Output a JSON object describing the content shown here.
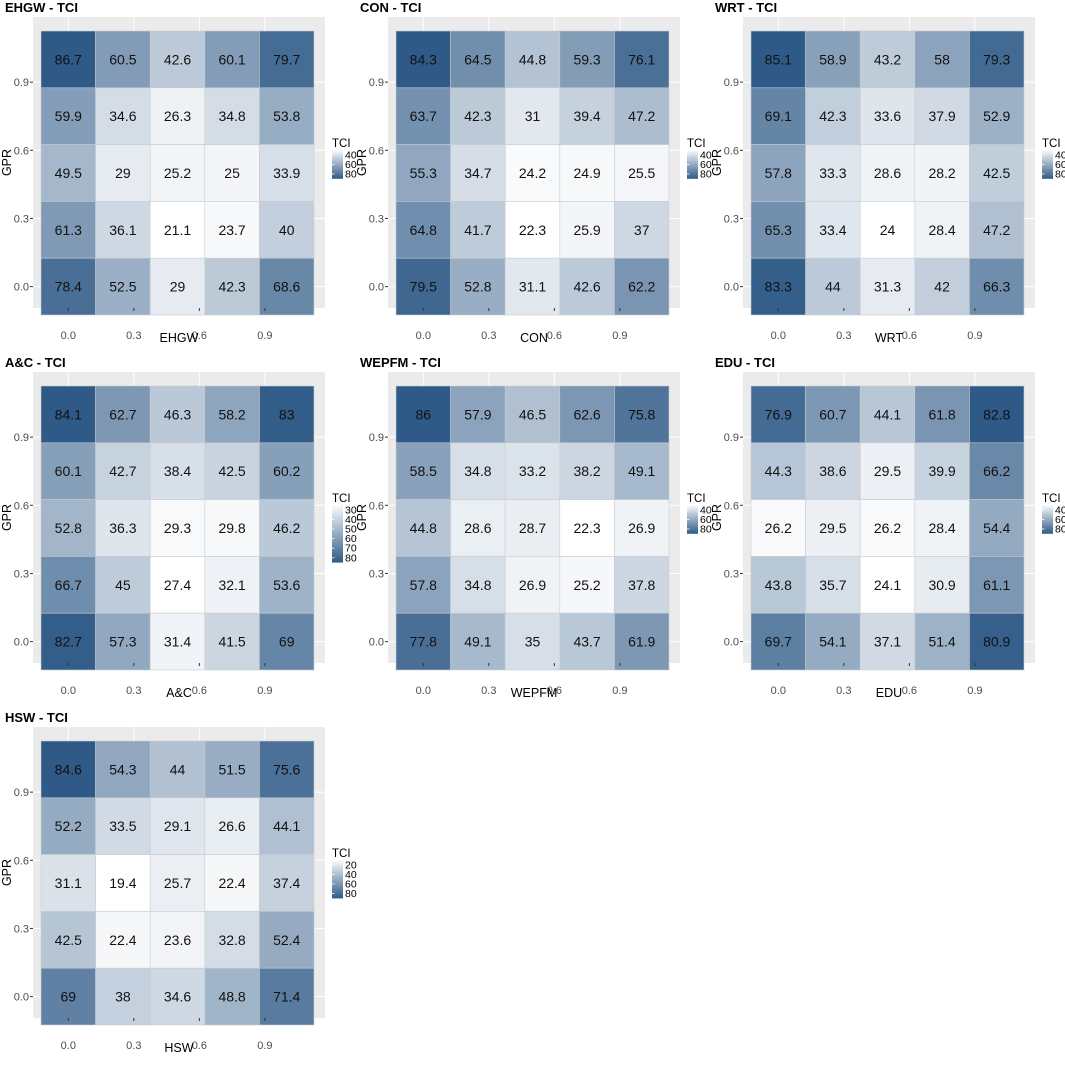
{
  "chart_data": [
    {
      "type": "heatmap",
      "title": "EHGW - TCI",
      "xlabel": "EHGW",
      "ylabel": "GPR",
      "x_ticks": [
        "0.0",
        "0.3",
        "0.6",
        "0.9"
      ],
      "y_ticks": [
        "0.0",
        "0.3",
        "0.6",
        "0.9"
      ],
      "rows_top_to_bottom": [
        [
          86.7,
          60.5,
          42.6,
          60.1,
          79.7
        ],
        [
          59.9,
          34.6,
          26.3,
          34.8,
          53.8
        ],
        [
          49.5,
          29,
          25.2,
          25,
          33.9
        ],
        [
          61.3,
          36.1,
          21.1,
          23.7,
          40
        ],
        [
          78.4,
          52.5,
          29,
          42.3,
          68.6
        ]
      ],
      "legend": {
        "title": "TCI",
        "ticks": [
          "40",
          "60",
          "80"
        ]
      }
    },
    {
      "type": "heatmap",
      "title": "CON - TCI",
      "xlabel": "CON",
      "ylabel": "GPR",
      "x_ticks": [
        "0.0",
        "0.3",
        "0.6",
        "0.9"
      ],
      "y_ticks": [
        "0.0",
        "0.3",
        "0.6",
        "0.9"
      ],
      "rows_top_to_bottom": [
        [
          84.3,
          64.5,
          44.8,
          59.3,
          76.1
        ],
        [
          63.7,
          42.3,
          31,
          39.4,
          47.2
        ],
        [
          55.3,
          34.7,
          24.2,
          24.9,
          25.5
        ],
        [
          64.8,
          41.7,
          22.3,
          25.9,
          37
        ],
        [
          79.5,
          52.8,
          31.1,
          42.6,
          62.2
        ]
      ],
      "legend": {
        "title": "TCI",
        "ticks": [
          "40",
          "60",
          "80"
        ]
      }
    },
    {
      "type": "heatmap",
      "title": "WRT - TCI",
      "xlabel": "WRT",
      "ylabel": "GPR",
      "x_ticks": [
        "0.0",
        "0.3",
        "0.6",
        "0.9"
      ],
      "y_ticks": [
        "0.0",
        "0.3",
        "0.6",
        "0.9"
      ],
      "rows_top_to_bottom": [
        [
          85.1,
          58.9,
          43.2,
          58,
          79.3
        ],
        [
          69.1,
          42.3,
          33.6,
          37.9,
          52.9
        ],
        [
          57.8,
          33.3,
          28.6,
          28.2,
          42.5
        ],
        [
          65.3,
          33.4,
          24,
          28.4,
          47.2
        ],
        [
          83.3,
          44,
          31.3,
          42,
          66.3
        ]
      ],
      "legend": {
        "title": "TCI",
        "ticks": [
          "40",
          "60",
          "80"
        ]
      }
    },
    {
      "type": "heatmap",
      "title": "A&C - TCI",
      "xlabel": "A&C",
      "ylabel": "GPR",
      "x_ticks": [
        "0.0",
        "0.3",
        "0.6",
        "0.9"
      ],
      "y_ticks": [
        "0.0",
        "0.3",
        "0.6",
        "0.9"
      ],
      "rows_top_to_bottom": [
        [
          84.1,
          62.7,
          46.3,
          58.2,
          83
        ],
        [
          60.1,
          42.7,
          38.4,
          42.5,
          60.2
        ],
        [
          52.8,
          36.3,
          29.3,
          29.8,
          46.2
        ],
        [
          66.7,
          45,
          27.4,
          32.1,
          53.6
        ],
        [
          82.7,
          57.3,
          31.4,
          41.5,
          69
        ]
      ],
      "legend": {
        "title": "TCI",
        "ticks": [
          "30",
          "40",
          "50",
          "60",
          "70",
          "80"
        ]
      }
    },
    {
      "type": "heatmap",
      "title": "WEPFM - TCI",
      "xlabel": "WEPFM",
      "ylabel": "GPR",
      "x_ticks": [
        "0.0",
        "0.3",
        "0.6",
        "0.9"
      ],
      "y_ticks": [
        "0.0",
        "0.3",
        "0.6",
        "0.9"
      ],
      "rows_top_to_bottom": [
        [
          86,
          57.9,
          46.5,
          62.6,
          75.8
        ],
        [
          58.5,
          34.8,
          33.2,
          38.2,
          49.1
        ],
        [
          44.8,
          28.6,
          28.7,
          22.3,
          26.9
        ],
        [
          57.8,
          34.8,
          26.9,
          25.2,
          37.8
        ],
        [
          77.8,
          49.1,
          35,
          43.7,
          61.9
        ]
      ],
      "legend": {
        "title": "TCI",
        "ticks": [
          "40",
          "60",
          "80"
        ]
      }
    },
    {
      "type": "heatmap",
      "title": "EDU - TCI",
      "xlabel": "EDU",
      "ylabel": "GPR",
      "x_ticks": [
        "0.0",
        "0.3",
        "0.6",
        "0.9"
      ],
      "y_ticks": [
        "0.0",
        "0.3",
        "0.6",
        "0.9"
      ],
      "rows_top_to_bottom": [
        [
          76.9,
          60.7,
          44.1,
          61.8,
          82.8
        ],
        [
          44.3,
          38.6,
          29.5,
          39.9,
          66.2
        ],
        [
          26.2,
          29.5,
          26.2,
          28.4,
          54.4
        ],
        [
          43.8,
          35.7,
          24.1,
          30.9,
          61.1
        ],
        [
          69.7,
          54.1,
          37.1,
          51.4,
          80.9
        ]
      ],
      "legend": {
        "title": "TCI",
        "ticks": [
          "40",
          "60",
          "80"
        ]
      }
    },
    {
      "type": "heatmap",
      "title": "HSW - TCI",
      "xlabel": "HSW",
      "ylabel": "GPR",
      "x_ticks": [
        "0.0",
        "0.3",
        "0.6",
        "0.9"
      ],
      "y_ticks": [
        "0.0",
        "0.3",
        "0.6",
        "0.9"
      ],
      "rows_top_to_bottom": [
        [
          84.6,
          54.3,
          44,
          51.5,
          75.6
        ],
        [
          52.2,
          33.5,
          29.1,
          26.6,
          44.1
        ],
        [
          31.1,
          19.4,
          25.7,
          22.4,
          37.4
        ],
        [
          42.5,
          22.4,
          23.6,
          32.8,
          52.4
        ],
        [
          69,
          38,
          34.6,
          48.8,
          71.4
        ]
      ],
      "legend": {
        "title": "TCI",
        "ticks": [
          "20",
          "40",
          "60",
          "80"
        ]
      }
    }
  ],
  "colors": {
    "low": "#ffffff",
    "high": "#2f5a87",
    "panel_background": "#ebebeb",
    "grid": "#ffffff"
  }
}
